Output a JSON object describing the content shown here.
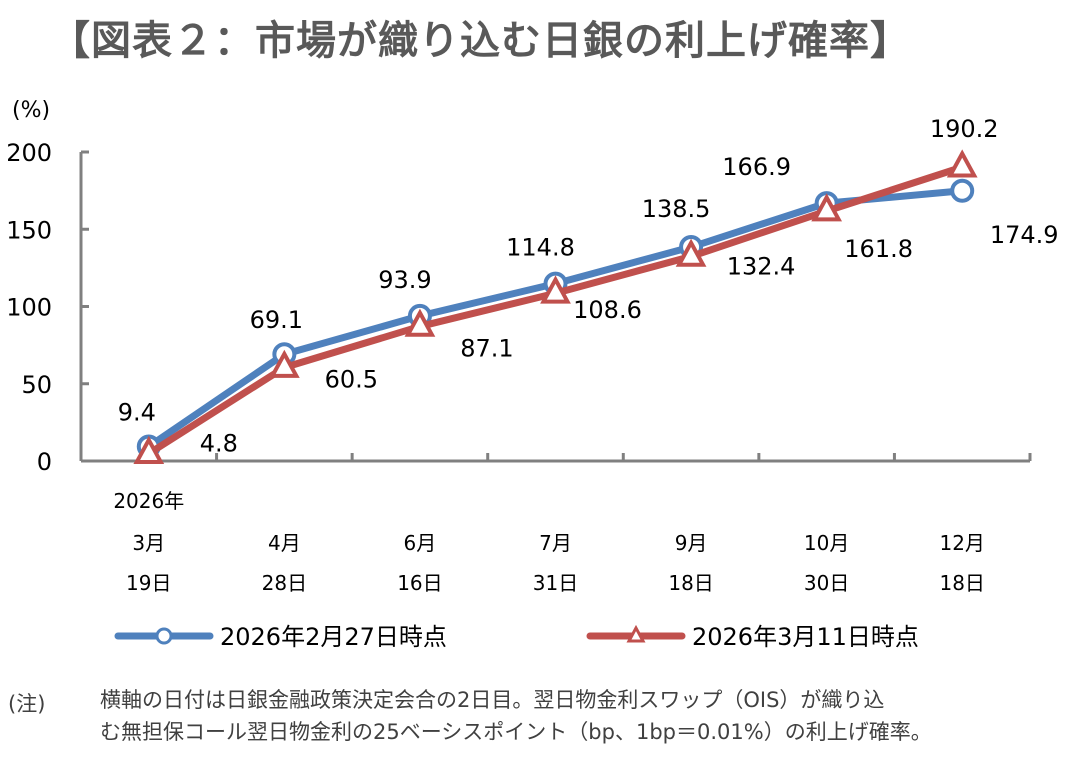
{
  "title": "【図表２：市場が織り込む日銀の利上げ確率】",
  "note": {
    "label": "(注)",
    "lines": [
      "横軸の日付は日銀金融政策決定会合の2日目。翌日物金利スワップ（OIS）が織り込",
      "む無担保コール翌日物金利の25ベーシスポイント（bp、1bp＝0.01%）の利上げ確率。"
    ]
  },
  "chart_data": {
    "type": "line",
    "title": "【図表２：市場が織り込む日銀の利上げ確率】",
    "ylabel": "(%)",
    "xlabel": "",
    "ylim": [
      0,
      200
    ],
    "yticks": [
      "0",
      "50",
      "100",
      "150",
      "200"
    ],
    "year_label": "2026年",
    "categories": [
      {
        "month": "3月",
        "day": "19日"
      },
      {
        "month": "4月",
        "day": "28日"
      },
      {
        "month": "6月",
        "day": "16日"
      },
      {
        "month": "7月",
        "day": "31日"
      },
      {
        "month": "9月",
        "day": "18日"
      },
      {
        "month": "10月",
        "day": "30日"
      },
      {
        "month": "12月",
        "day": "18日"
      }
    ],
    "series": [
      {
        "name": "2026年2月27日時点",
        "marker": "circle",
        "color": "#4F81BD",
        "values": [
          9.4,
          69.1,
          93.9,
          114.8,
          138.5,
          166.9,
          174.9
        ],
        "labels": [
          "9.4",
          "69.1",
          "93.9",
          "114.8",
          "138.5",
          "166.9",
          "174.9"
        ]
      },
      {
        "name": "2026年3月11日時点",
        "marker": "triangle",
        "color": "#C0504D",
        "values": [
          4.8,
          60.5,
          87.1,
          108.6,
          132.4,
          161.8,
          190.2
        ],
        "labels": [
          "4.8",
          "60.5",
          "87.1",
          "108.6",
          "132.4",
          "161.8",
          "190.2"
        ]
      }
    ],
    "legend": "bottom",
    "grid": false
  }
}
